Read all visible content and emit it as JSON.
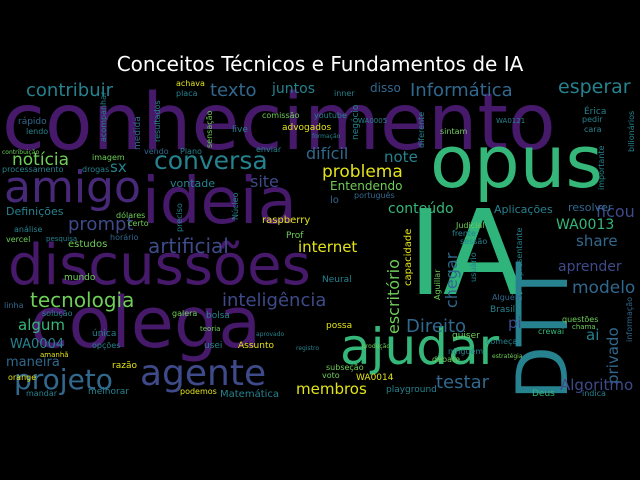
{
  "title": "Conceitos Técnicos e Fundamentos de IA",
  "palette": {
    "purple": "#46196b",
    "violet": "#482878",
    "indigo": "#3e4a89",
    "blue": "#31688e",
    "teal": "#26828e",
    "sea": "#1f9e89",
    "green": "#35b779",
    "lime": "#6ece58",
    "yellow": "#e3e418"
  },
  "words": {
    "conhecimento": "conhecimento",
    "opus": "opus",
    "IA": "IA",
    "ideia": "ideia",
    "discussoes": "discussões",
    "colega": "colega",
    "amigo": "amigo",
    "ajudar": "ajudar",
    "DTT": "DTT",
    "agente": "agente",
    "projeto": "projeto",
    "conversa": "conversa",
    "texto": "texto",
    "contribuir": "contribuir",
    "informatica": "Informática",
    "esperar": "esperar",
    "juntos": "juntos",
    "disso": "disso",
    "noticia": "notícia",
    "prompt": "prompt",
    "artificial": "artificial",
    "tecnologia": "tecnologia",
    "inteligencia": "inteligência",
    "internet": "internet",
    "problema": "problema",
    "dificil": "difícil",
    "note": "note",
    "site": "site",
    "conteudo": "conteúdo",
    "ficou": "ficou",
    "aprender": "aprender",
    "modelo": "modelo",
    "share": "share",
    "WA0013": "WA0013",
    "direito": "Direito",
    "escritorio": "escritório",
    "chegar": "chegar",
    "pi": "pi",
    "ai": "ai",
    "privado": "privado",
    "testar": "testar",
    "algoritmo": "Algoritmo",
    "membros": "membros",
    "algum": "algum",
    "maneira": "maneira",
    "WA0004": "WA0004",
    "sx": "sx",
    "entendendo": "Entendendo",
    "definicoes": "Definições",
    "aplicacoes": "Aplicações",
    "estudos": "estudos",
    "vontade": "vontade",
    "raspberry": "raspberry",
    "capacidade": "capacidade",
    "resolver": "resolver",
    "lo": "lo",
    "rapido": "rápido",
    "lendo": "lendo",
    "advogados": "advogados",
    "achava": "achava",
    "medida": "medida",
    "sensacao": "sensação",
    "live": "live",
    "comissao": "comissão",
    "negocio": "negócio",
    "enviar": "enviar",
    "imagem": "imagem",
    "vendo": "vendo",
    "mundo": "mundo",
    "usei": "usei",
    "assunto": "Assunto",
    "possa": "possa",
    "matematica": "Matemática",
    "podemos": "podemos",
    "melhorar": "melhorar",
    "mandar": "mandar",
    "orange": "orange",
    "galera": "galera",
    "bolsa": "bolsa",
    "unica": "única",
    "opcoes": "opções",
    "razao": "razão",
    "teoria": "teoria",
    "quiser": "quiser",
    "brasil": "Brasil",
    "alguem": "Alguém",
    "comecar": "começar",
    "questoes": "questões",
    "chama": "chama",
    "crewai": "crewai",
    "deus": "Deus",
    "indica": "indica",
    "playground": "playground",
    "WA0014": "WA0014",
    "subsecao": "subseção",
    "voto": "voto",
    "neural": "Neural",
    "prof": "Prof",
    "dolares": "dólares",
    "certo": "certo",
    "horario": "horário",
    "vercel": "vercel",
    "analise": "análise",
    "linha": "linha",
    "solucao": "solução",
    "pesquisa": "pesquisa",
    "ninguem": "ninguém",
    "debate": "debate",
    "frente": "frente",
    "judicial": "Judicial",
    "sessao": "sessão",
    "sintam": "sintam",
    "portugues": "português",
    "erica": "Érica",
    "pedir": "pedir",
    "cara": "cara",
    "importante": "importante",
    "bilionarios": "bilionários",
    "informacao": "informação",
    "aguillar": "Aguillar",
    "usuario": "usuário",
    "youtube": "youtube",
    "inner": "inner",
    "placa": "placa",
    "resultados": "resultados",
    "acompanhar": "acompanhar",
    "contribuicao": "contribuição",
    "processamento": "processamento",
    "drogas": "drogas",
    "WA0005": "WA0005",
    "WA0121": "WA0121",
    "diferente": "diferente",
    "representante": "representante",
    "plano": "Plano",
    "nucleo": "Núcleo",
    "preciso": "preciso",
    "estrategia": "estratégia",
    "registro": "registro",
    "aprovado": "aprovado",
    "producao": "produção",
    "amanha": "amanhã",
    "formacao": "formação"
  }
}
